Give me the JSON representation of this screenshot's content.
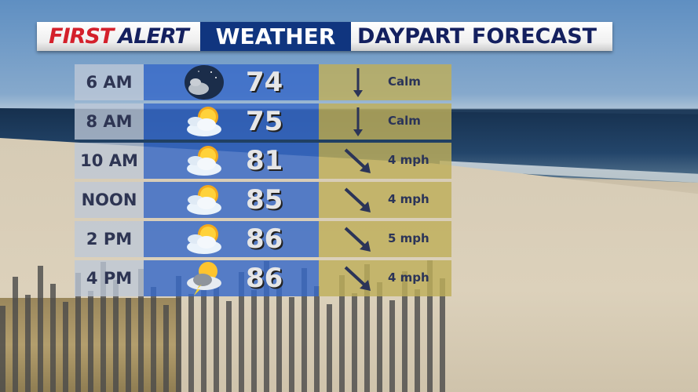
{
  "header": {
    "first": "FIRST",
    "alert": "ALERT",
    "weather": "WEATHER",
    "title": "DAYPART FORECAST"
  },
  "rows": [
    {
      "time": "6 AM",
      "icon": "night-partly-cloudy-icon",
      "temp": "74",
      "wind_dir": "S",
      "wind": "Calm"
    },
    {
      "time": "8 AM",
      "icon": "partly-sunny-icon",
      "temp": "75",
      "wind_dir": "S",
      "wind": "Calm"
    },
    {
      "time": "10 AM",
      "icon": "partly-sunny-icon",
      "temp": "81",
      "wind_dir": "SE",
      "wind": "4 mph"
    },
    {
      "time": "NOON",
      "icon": "partly-sunny-icon",
      "temp": "85",
      "wind_dir": "SE",
      "wind": "4 mph"
    },
    {
      "time": "2 PM",
      "icon": "partly-sunny-icon",
      "temp": "86",
      "wind_dir": "SE",
      "wind": "5 mph"
    },
    {
      "time": "4 PM",
      "icon": "sun-thunderstorm-icon",
      "temp": "86",
      "wind_dir": "SE",
      "wind": "4 mph"
    }
  ]
}
